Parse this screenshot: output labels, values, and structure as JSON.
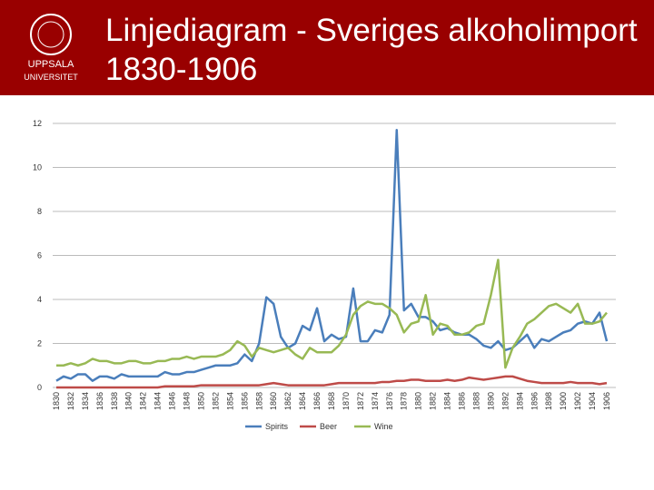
{
  "logo_text": [
    "UPPSALA",
    "UNIVERSITET"
  ],
  "chart_data": {
    "type": "line",
    "title": "Linjediagram  - Sveriges alkoholimport 1830-1906",
    "x": [
      1830,
      1831,
      1832,
      1833,
      1834,
      1835,
      1836,
      1837,
      1838,
      1839,
      1840,
      1841,
      1842,
      1843,
      1844,
      1845,
      1846,
      1847,
      1848,
      1849,
      1850,
      1851,
      1852,
      1853,
      1854,
      1855,
      1856,
      1857,
      1858,
      1859,
      1860,
      1861,
      1862,
      1863,
      1864,
      1865,
      1866,
      1867,
      1868,
      1869,
      1870,
      1871,
      1872,
      1873,
      1874,
      1875,
      1876,
      1877,
      1878,
      1879,
      1880,
      1881,
      1882,
      1883,
      1884,
      1885,
      1886,
      1887,
      1888,
      1889,
      1890,
      1891,
      1892,
      1893,
      1894,
      1895,
      1896,
      1897,
      1898,
      1899,
      1900,
      1901,
      1902,
      1903,
      1904,
      1905,
      1906
    ],
    "xlim": [
      1830,
      1906
    ],
    "xticks": [
      1830,
      1832,
      1834,
      1836,
      1838,
      1840,
      1842,
      1844,
      1846,
      1848,
      1850,
      1852,
      1854,
      1856,
      1858,
      1860,
      1862,
      1864,
      1866,
      1868,
      1870,
      1872,
      1874,
      1876,
      1878,
      1880,
      1882,
      1884,
      1886,
      1888,
      1890,
      1892,
      1894,
      1896,
      1898,
      1900,
      1902,
      1904,
      1906
    ],
    "ylim": [
      0,
      12
    ],
    "yticks": [
      0,
      2,
      4,
      6,
      8,
      10,
      12
    ],
    "grid": true,
    "legend": "bottom",
    "series": [
      {
        "name": "Spirits",
        "color": "#4a7ebb",
        "values": [
          0.3,
          0.5,
          0.4,
          0.6,
          0.6,
          0.3,
          0.5,
          0.5,
          0.4,
          0.6,
          0.5,
          0.5,
          0.5,
          0.5,
          0.5,
          0.7,
          0.6,
          0.6,
          0.7,
          0.7,
          0.8,
          0.9,
          1.0,
          1.0,
          1.0,
          1.1,
          1.5,
          1.2,
          2.0,
          4.1,
          3.8,
          2.3,
          1.8,
          2.0,
          2.8,
          2.6,
          3.6,
          2.1,
          2.4,
          2.2,
          2.3,
          4.5,
          2.1,
          2.1,
          2.6,
          2.5,
          3.3,
          11.7,
          3.5,
          3.8,
          3.2,
          3.2,
          3.0,
          2.6,
          2.7,
          2.5,
          2.4,
          2.4,
          2.2,
          1.9,
          1.8,
          2.1,
          1.7,
          1.8,
          2.1,
          2.4,
          1.8,
          2.2,
          2.1,
          2.3,
          2.5,
          2.6,
          2.9,
          3.0,
          2.9,
          3.4,
          2.1
        ]
      },
      {
        "name": "Beer",
        "color": "#be4b48",
        "values": [
          0,
          0,
          0,
          0,
          0,
          0,
          0,
          0,
          0,
          0,
          0,
          0,
          0,
          0,
          0,
          0.05,
          0.05,
          0.05,
          0.05,
          0.05,
          0.1,
          0.1,
          0.1,
          0.1,
          0.1,
          0.1,
          0.1,
          0.1,
          0.1,
          0.15,
          0.2,
          0.15,
          0.1,
          0.1,
          0.1,
          0.1,
          0.1,
          0.1,
          0.15,
          0.2,
          0.2,
          0.2,
          0.2,
          0.2,
          0.2,
          0.25,
          0.25,
          0.3,
          0.3,
          0.35,
          0.35,
          0.3,
          0.3,
          0.3,
          0.35,
          0.3,
          0.35,
          0.45,
          0.4,
          0.35,
          0.4,
          0.45,
          0.5,
          0.5,
          0.4,
          0.3,
          0.25,
          0.2,
          0.2,
          0.2,
          0.2,
          0.25,
          0.2,
          0.2,
          0.2,
          0.15,
          0.2
        ]
      },
      {
        "name": "Wine",
        "color": "#98b954",
        "values": [
          1.0,
          1.0,
          1.1,
          1.0,
          1.1,
          1.3,
          1.2,
          1.2,
          1.1,
          1.1,
          1.2,
          1.2,
          1.1,
          1.1,
          1.2,
          1.2,
          1.3,
          1.3,
          1.4,
          1.3,
          1.4,
          1.4,
          1.4,
          1.5,
          1.7,
          2.1,
          1.9,
          1.4,
          1.8,
          1.7,
          1.6,
          1.7,
          1.8,
          1.5,
          1.3,
          1.8,
          1.6,
          1.6,
          1.6,
          1.9,
          2.4,
          3.3,
          3.7,
          3.9,
          3.8,
          3.8,
          3.6,
          3.3,
          2.5,
          2.9,
          3.0,
          4.2,
          2.4,
          2.9,
          2.8,
          2.4,
          2.4,
          2.5,
          2.8,
          2.9,
          4.2,
          5.8,
          0.9,
          1.8,
          2.3,
          2.9,
          3.1,
          3.4,
          3.7,
          3.8,
          3.6,
          3.4,
          3.8,
          2.9,
          2.9,
          3.0,
          3.4
        ]
      }
    ]
  }
}
